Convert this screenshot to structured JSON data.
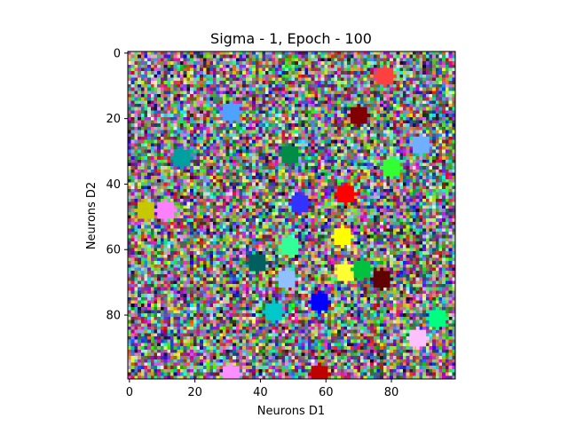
{
  "chart_data": {
    "type": "heatmap",
    "title": "Sigma - 1, Epoch - 100",
    "xlabel": "Neurons D1",
    "ylabel": "Neurons D2",
    "grid_size": [
      100,
      100
    ],
    "xlim": [
      0,
      100
    ],
    "ylim": [
      100,
      0
    ],
    "x_ticks": [
      0,
      20,
      40,
      60,
      80
    ],
    "y_ticks": [
      0,
      20,
      40,
      60,
      80
    ],
    "grid": false,
    "background": "random-noise",
    "clusters": [
      {
        "x": 78,
        "y": 7,
        "color": "#ff4040"
      },
      {
        "x": 70,
        "y": 19,
        "color": "#800000"
      },
      {
        "x": 31,
        "y": 18,
        "color": "#4fa3ff"
      },
      {
        "x": 89,
        "y": 28,
        "color": "#6fb0ff"
      },
      {
        "x": 16,
        "y": 32,
        "color": "#00a0a0"
      },
      {
        "x": 49,
        "y": 31,
        "color": "#008c46"
      },
      {
        "x": 80,
        "y": 35,
        "color": "#33ff33"
      },
      {
        "x": 66,
        "y": 43,
        "color": "#ff0000"
      },
      {
        "x": 52,
        "y": 46,
        "color": "#3333ff"
      },
      {
        "x": 5,
        "y": 48,
        "color": "#c8c800"
      },
      {
        "x": 11,
        "y": 48,
        "color": "#ff80ff"
      },
      {
        "x": 65,
        "y": 56,
        "color": "#ffff00"
      },
      {
        "x": 49,
        "y": 59,
        "color": "#33ff99"
      },
      {
        "x": 39,
        "y": 64,
        "color": "#006060"
      },
      {
        "x": 66,
        "y": 67,
        "color": "#ffff33"
      },
      {
        "x": 71,
        "y": 66,
        "color": "#00c040"
      },
      {
        "x": 48,
        "y": 69,
        "color": "#90c0ff"
      },
      {
        "x": 77,
        "y": 69,
        "color": "#600000"
      },
      {
        "x": 58,
        "y": 76,
        "color": "#0000ff"
      },
      {
        "x": 44,
        "y": 79,
        "color": "#00c8c8"
      },
      {
        "x": 94,
        "y": 81,
        "color": "#00ff80"
      },
      {
        "x": 88,
        "y": 87,
        "color": "#ffc0ff"
      },
      {
        "x": 31,
        "y": 98,
        "color": "#ff90ff"
      },
      {
        "x": 58,
        "y": 98,
        "color": "#c00000"
      }
    ]
  }
}
